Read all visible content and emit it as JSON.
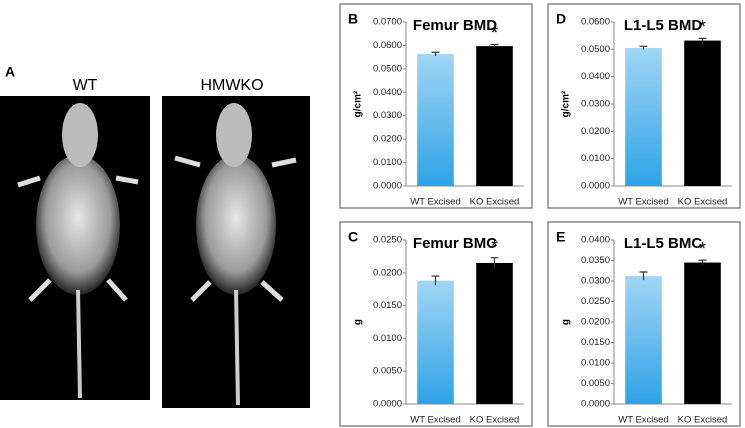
{
  "panel_a": {
    "label": "A",
    "image_labels": [
      "WT",
      "HMWKO"
    ]
  },
  "chart_data": [
    {
      "type": "bar",
      "panel": "B",
      "title": "Femur BMD",
      "ylabel": "g/cm²",
      "categories": [
        "WT Excised",
        "KO Excised"
      ],
      "values": [
        0.0563,
        0.0597
      ],
      "errors": [
        0.0008,
        0.0007
      ],
      "colors": [
        "#2ea3e6",
        "#000000"
      ],
      "annotations": [
        null,
        "*"
      ],
      "ylim": [
        0,
        0.07
      ],
      "yticks": [
        {
          "value": 0,
          "label": "0.0000"
        },
        {
          "value": 0.01,
          "label": "0.0100"
        },
        {
          "value": 0.02,
          "label": "0.0200"
        },
        {
          "value": 0.03,
          "label": "0.0300"
        },
        {
          "value": 0.04,
          "label": "0.0400"
        },
        {
          "value": 0.05,
          "label": "0.0500"
        },
        {
          "value": 0.06,
          "label": "0.0600"
        },
        {
          "value": 0.07,
          "label": "0.0700"
        }
      ]
    },
    {
      "type": "bar",
      "panel": "C",
      "title": "Femur BMC",
      "ylabel": "g",
      "categories": [
        "WT Excised",
        "KO Excised"
      ],
      "values": [
        0.0188,
        0.0215
      ],
      "errors": [
        0.0007,
        0.0008
      ],
      "colors": [
        "#2ea3e6",
        "#000000"
      ],
      "annotations": [
        null,
        "*"
      ],
      "ylim": [
        0,
        0.025
      ],
      "yticks": [
        {
          "value": 0,
          "label": "0.0000"
        },
        {
          "value": 0.005,
          "label": "0.0050"
        },
        {
          "value": 0.01,
          "label": "0.0100"
        },
        {
          "value": 0.015,
          "label": "0.0150"
        },
        {
          "value": 0.02,
          "label": "0.0200"
        },
        {
          "value": 0.025,
          "label": "0.0250"
        }
      ]
    },
    {
      "type": "bar",
      "panel": "D",
      "title": "L1-L5 BMD",
      "ylabel": "g/cm²",
      "categories": [
        "WT Excised",
        "KO Excised"
      ],
      "values": [
        0.0505,
        0.0532
      ],
      "errors": [
        0.0006,
        0.0008
      ],
      "colors": [
        "#2ea3e6",
        "#000000"
      ],
      "annotations": [
        null,
        "*"
      ],
      "ylim": [
        0,
        0.06
      ],
      "yticks": [
        {
          "value": 0,
          "label": "0.0000"
        },
        {
          "value": 0.01,
          "label": "0.0100"
        },
        {
          "value": 0.02,
          "label": "0.0200"
        },
        {
          "value": 0.03,
          "label": "0.0300"
        },
        {
          "value": 0.04,
          "label": "0.0400"
        },
        {
          "value": 0.05,
          "label": "0.0500"
        },
        {
          "value": 0.06,
          "label": "0.0600"
        }
      ]
    },
    {
      "type": "bar",
      "panel": "E",
      "title": "L1-L5 BMC",
      "ylabel": "g",
      "categories": [
        "WT Excised",
        "KO Excised"
      ],
      "values": [
        0.0312,
        0.0345
      ],
      "errors": [
        0.001,
        0.0006
      ],
      "colors": [
        "#2ea3e6",
        "#000000"
      ],
      "annotations": [
        null,
        "*"
      ],
      "ylim": [
        0,
        0.04
      ],
      "yticks": [
        {
          "value": 0,
          "label": "0.0000"
        },
        {
          "value": 0.005,
          "label": "0.0050"
        },
        {
          "value": 0.01,
          "label": "0.0100"
        },
        {
          "value": 0.015,
          "label": "0.0150"
        },
        {
          "value": 0.02,
          "label": "0.0200"
        },
        {
          "value": 0.025,
          "label": "0.0250"
        },
        {
          "value": 0.03,
          "label": "0.0300"
        },
        {
          "value": 0.035,
          "label": "0.0350"
        },
        {
          "value": 0.04,
          "label": "0.0400"
        }
      ]
    }
  ]
}
